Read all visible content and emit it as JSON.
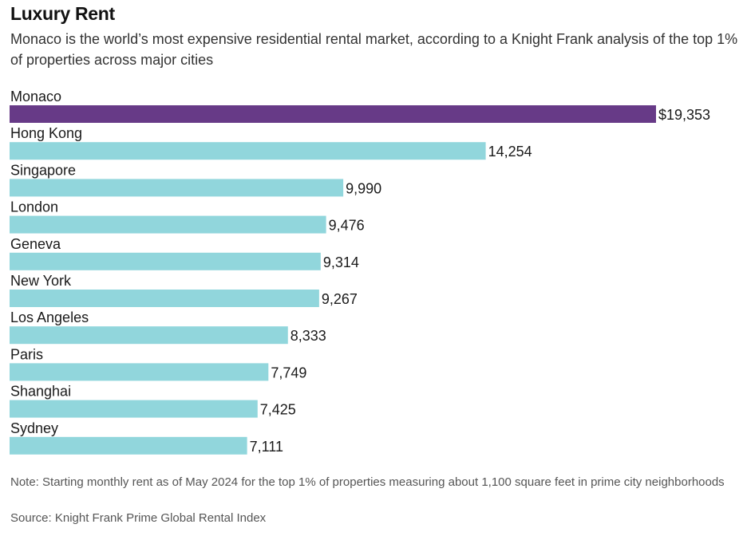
{
  "header": {
    "title": "Luxury Rent",
    "subtitle": "Monaco is the world’s most expensive residential rental market, according to a Knight Frank analysis of the top 1% of properties across major cities"
  },
  "footer": {
    "note": "Note: Starting monthly rent as of May 2024 for the top 1% of properties measuring about 1,100 square feet in prime city neighborhoods",
    "source": "Source: Knight Frank Prime Global Rental Index"
  },
  "colors": {
    "highlight": "#673a87",
    "bar": "#91d6dc",
    "text": "#1a1a1a"
  },
  "chart_data": {
    "type": "bar",
    "orientation": "horizontal",
    "categories": [
      "Monaco",
      "Hong Kong",
      "Singapore",
      "London",
      "Geneva",
      "New York",
      "Los Angeles",
      "Paris",
      "Shanghai",
      "Sydney"
    ],
    "values": [
      19353,
      14254,
      9990,
      9476,
      9314,
      9267,
      8333,
      7749,
      7425,
      7111
    ],
    "value_labels": [
      "$19,353",
      "14,254",
      "9,990",
      "9,476",
      "9,314",
      "9,267",
      "8,333",
      "7,749",
      "7,425",
      "7,111"
    ],
    "highlight_index": 0,
    "xlim": [
      0,
      19353
    ],
    "grid": false,
    "legend": "none"
  }
}
